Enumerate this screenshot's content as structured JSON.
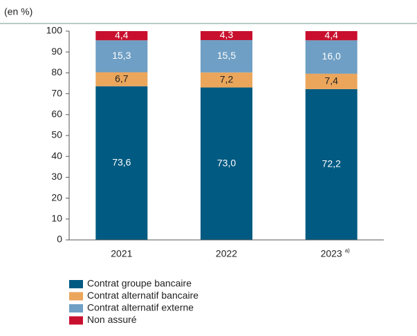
{
  "chart_data": {
    "type": "stacked_bar",
    "y_label": "(en %)",
    "categories": [
      "2021",
      "2022",
      "2023"
    ],
    "annotation": "a)",
    "series": [
      {
        "name": "Contrat groupe bancaire",
        "color": "#005a82",
        "label_color": "#ffffff",
        "values": [
          73.6,
          73.0,
          72.2
        ],
        "value_labels": [
          "73,6",
          "73,0",
          "72,2"
        ]
      },
      {
        "name": "Contrat alternatif bancaire",
        "color": "#eba65c",
        "label_color": "#222222",
        "values": [
          6.7,
          7.2,
          7.4
        ],
        "value_labels": [
          "6,7",
          "7,2",
          "7,4"
        ]
      },
      {
        "name": "Contrat alternatif externe",
        "color": "#6f9fc4",
        "label_color": "#ffffff",
        "values": [
          15.3,
          15.5,
          16.0
        ],
        "value_labels": [
          "15,3",
          "15,5",
          "16,0"
        ]
      },
      {
        "name": "Non assuré",
        "color": "#c8102e",
        "label_color": "#ffffff",
        "values": [
          4.4,
          4.3,
          4.4
        ],
        "value_labels": [
          "4,4",
          "4,3",
          "4,4"
        ]
      }
    ],
    "ylim": [
      0,
      100
    ],
    "yticks": [
      0,
      10,
      20,
      30,
      40,
      50,
      60,
      70,
      80,
      90,
      100
    ],
    "grid": false
  }
}
